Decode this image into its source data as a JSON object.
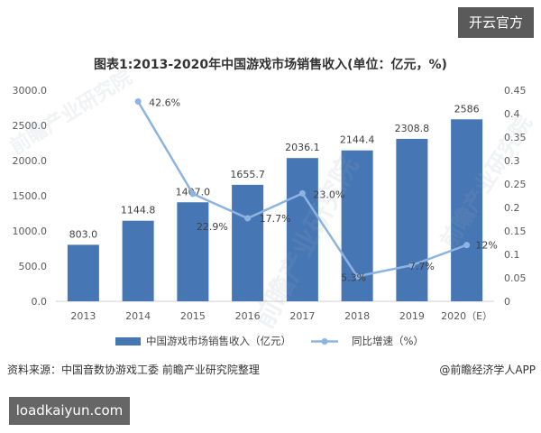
{
  "badges": {
    "top_right": "开云官方",
    "bottom_left": "loadkaiyun.com"
  },
  "watermark": "前瞻产业研究院",
  "source": {
    "left": "资料来源：中国音数协游戏工委 前瞻产业研究院整理",
    "right": "@前瞻经济学人APP"
  },
  "colors": {
    "bar": "#4677b4",
    "line": "#8db3e2"
  },
  "chart_data": {
    "type": "bar",
    "title": "图表1:2013-2020年中国游戏市场销售收入(单位：亿元，%)",
    "categories": [
      "2013",
      "2014",
      "2015",
      "2016",
      "2017",
      "2018",
      "2019",
      "2020（E）"
    ],
    "series": [
      {
        "name": "中国游戏市场销售收入（亿元）",
        "type": "bar",
        "axis": "left",
        "values": [
          803.0,
          1144.8,
          1407.0,
          1655.7,
          2036.1,
          2144.4,
          2308.8,
          2586
        ],
        "labels": [
          "803.0",
          "1144.8",
          "1407.0",
          "1655.7",
          "2036.1",
          "2144.4",
          "2308.8",
          "2586"
        ]
      },
      {
        "name": "同比增速（%）",
        "type": "line",
        "axis": "right",
        "values": [
          null,
          0.426,
          0.229,
          0.177,
          0.23,
          0.053,
          0.077,
          0.12
        ],
        "labels": [
          null,
          "42.6%",
          "22.9%",
          "17.7%",
          "23.0%",
          "5.3%",
          "7.7%",
          "12%"
        ]
      }
    ],
    "y_left": {
      "ylim": [
        0,
        3000
      ],
      "ticks": [
        "0.0",
        "500.0",
        "1000.0",
        "1500.0",
        "2000.0",
        "2500.0",
        "3000.0"
      ]
    },
    "y_right": {
      "ylim": [
        0,
        0.45
      ],
      "ticks": [
        "0",
        "0.05",
        "0.1",
        "0.15",
        "0.2",
        "0.25",
        "0.3",
        "0.35",
        "0.4",
        "0.45"
      ]
    },
    "grid": false,
    "legend": "bottom"
  }
}
